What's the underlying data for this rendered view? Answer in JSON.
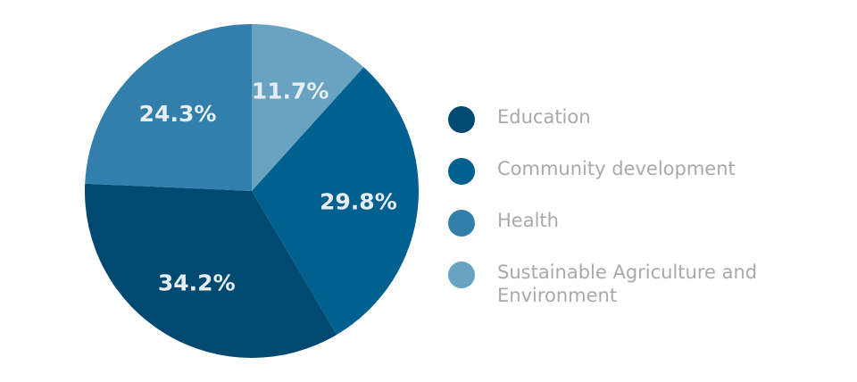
{
  "chart_data": {
    "type": "pie",
    "title": "",
    "slices": [
      {
        "label": "Sustainable Agriculture and Environment",
        "value": 11.7,
        "display": "11.7%",
        "color": "#69a3c2"
      },
      {
        "label": "Community development",
        "value": 29.8,
        "display": "29.8%",
        "color": "#00608f"
      },
      {
        "label": "Education",
        "value": 34.2,
        "display": "34.2%",
        "color": "#004971"
      },
      {
        "label": "Health",
        "value": 24.3,
        "display": "24.3%",
        "color": "#327fab"
      }
    ],
    "start_angle_deg": 0,
    "direction": "clockwise",
    "legend_position": "right"
  },
  "legend": {
    "items": [
      {
        "label": "Education",
        "color": "#004971"
      },
      {
        "label": "Community development",
        "color": "#00608f"
      },
      {
        "label": "Health",
        "color": "#327fab"
      },
      {
        "label": "Sustainable Agriculture and Environment",
        "color": "#69a3c2"
      }
    ]
  }
}
